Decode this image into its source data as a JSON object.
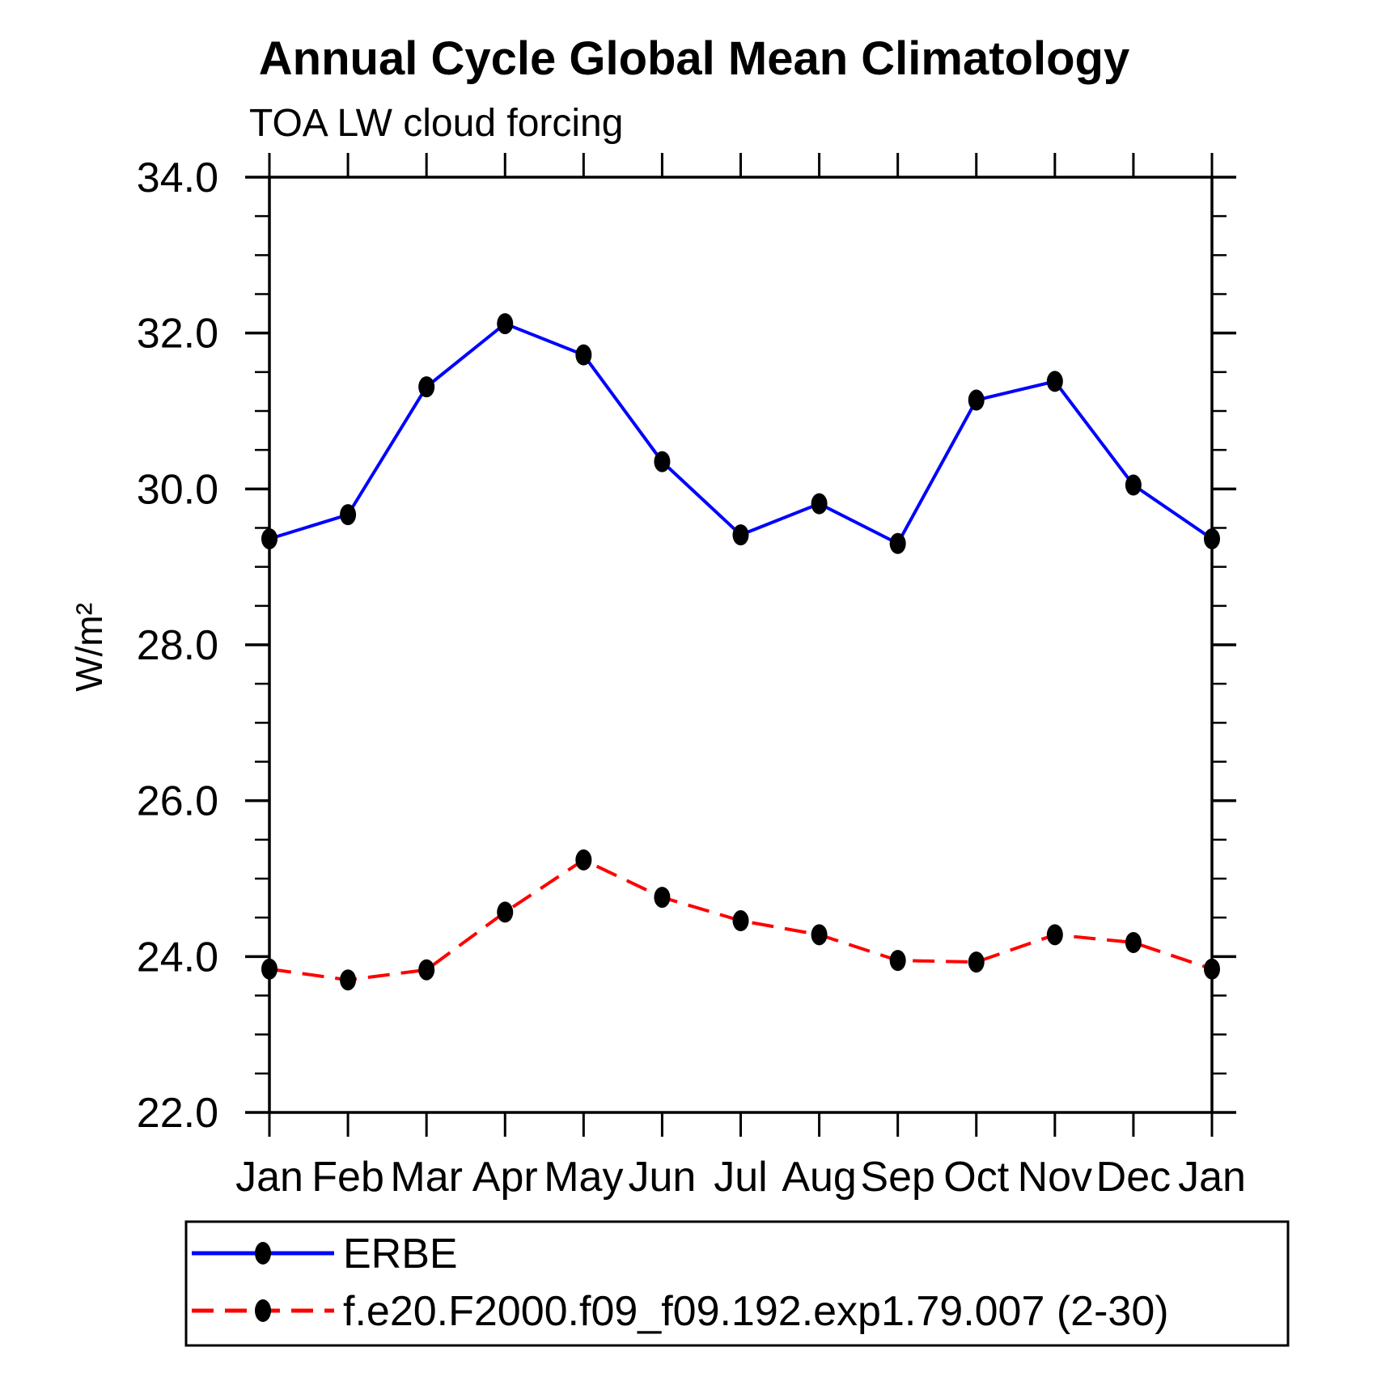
{
  "page": {
    "title": "Annual Cycle Global Mean Climatology",
    "subtitle": "TOA LW cloud forcing"
  },
  "colors": {
    "background": "#ffffff",
    "axis": "#000000",
    "erbe_line": "#0000ff",
    "model_line": "#ff0000",
    "marker": "#000000"
  },
  "chart_data": {
    "type": "line",
    "title": "Annual Cycle Global Mean Climatology",
    "subtitle": "TOA LW cloud forcing",
    "xlabel": "",
    "ylabel": "W/m²",
    "categories": [
      "Jan",
      "Feb",
      "Mar",
      "Apr",
      "May",
      "Jun",
      "Jul",
      "Aug",
      "Sep",
      "Oct",
      "Nov",
      "Dec",
      "Jan"
    ],
    "ylim": [
      22.0,
      34.0
    ],
    "y_major_ticks": [
      22,
      24,
      26,
      28,
      30,
      32,
      34
    ],
    "y_tick_labels": [
      "22.0",
      "24.0",
      "26.0",
      "28.0",
      "30.0",
      "32.0",
      "34.0"
    ],
    "y_minor_step": 0.5,
    "grid": false,
    "legend_position": "bottom-left-box",
    "series": [
      {
        "name": "ERBE",
        "color": "#0000ff",
        "style": "solid",
        "marker": "circle",
        "marker_color": "#000000",
        "values": [
          29.36,
          29.67,
          31.31,
          32.12,
          31.72,
          30.35,
          29.41,
          29.81,
          29.3,
          31.14,
          31.38,
          30.05,
          29.36
        ]
      },
      {
        "name": "f.e20.F2000.f09_f09.192.exp1.79.007 (2-30)",
        "color": "#ff0000",
        "style": "dashed",
        "marker": "circle",
        "marker_color": "#000000",
        "values": [
          23.84,
          23.7,
          23.83,
          24.57,
          25.24,
          24.76,
          24.46,
          24.28,
          23.95,
          23.93,
          24.28,
          24.18,
          23.84
        ]
      }
    ]
  }
}
